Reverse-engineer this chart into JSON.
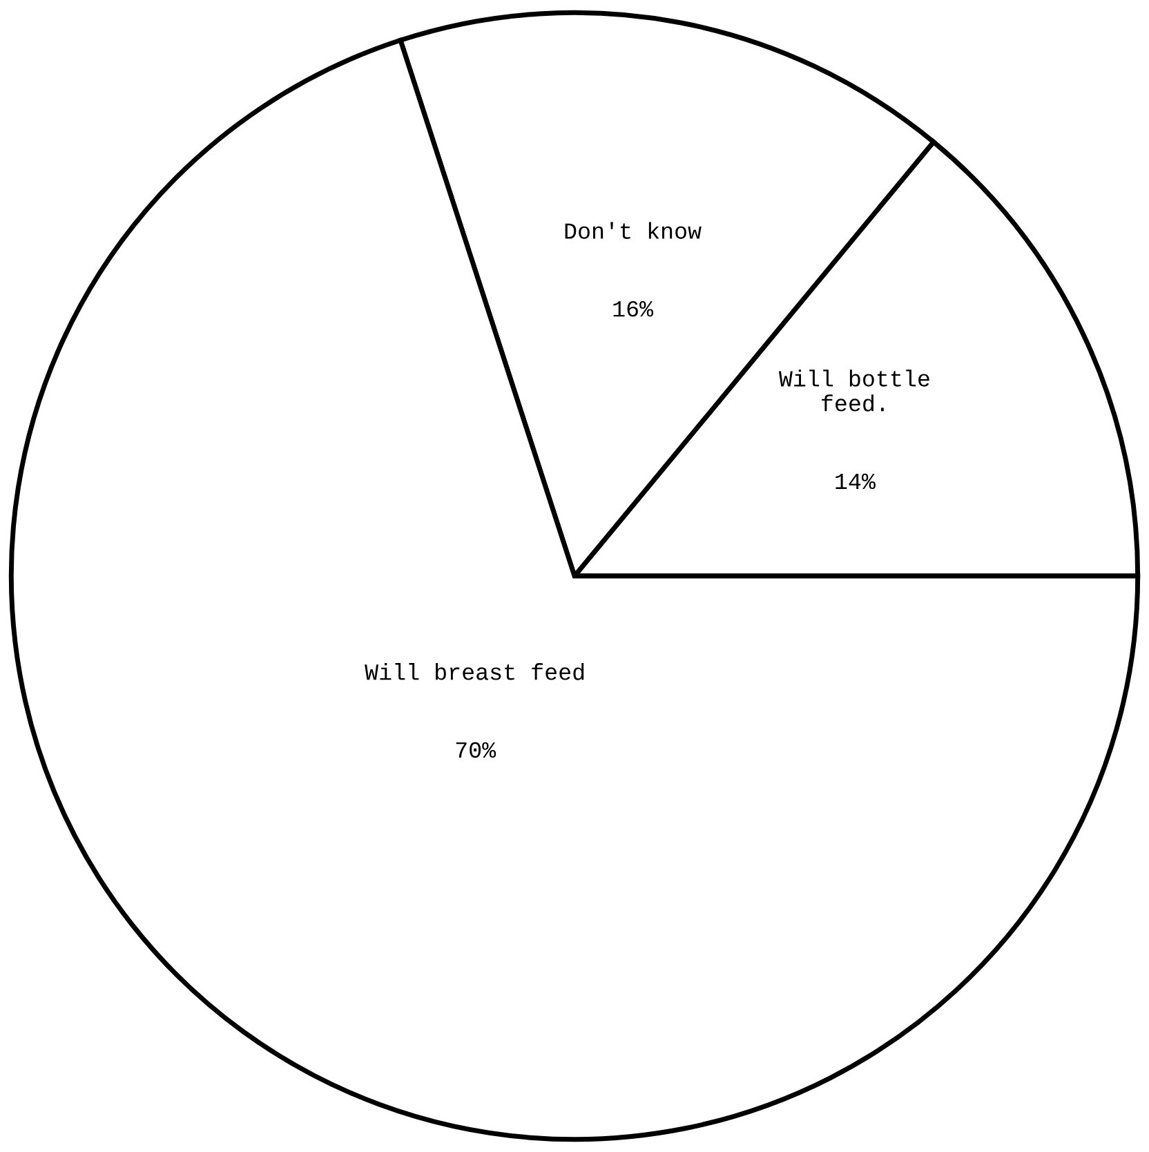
{
  "chart_data": {
    "type": "pie",
    "categories": [
      "Will bottle\nfeed.",
      "Don't know",
      "Will breast feed"
    ],
    "values": [
      14,
      16,
      70
    ],
    "colors": [
      "#ffffff",
      "#ffffff",
      "#ffffff"
    ],
    "value_labels": [
      "14%",
      "16%",
      "70%"
    ]
  }
}
